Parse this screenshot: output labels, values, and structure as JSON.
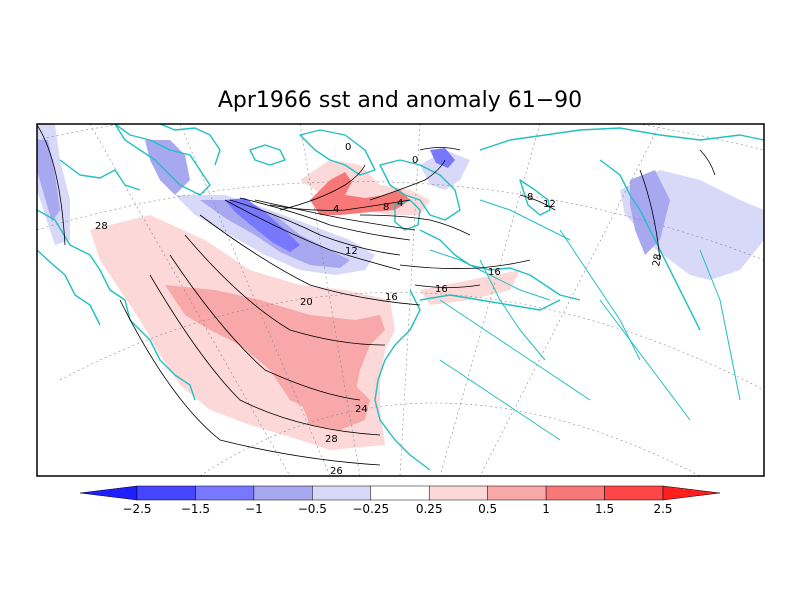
{
  "title": "Apr1966 sst and anomaly 61−90",
  "contour_labels": [
    "28",
    "0",
    "4",
    "8",
    "4",
    "12",
    "16",
    "20",
    "16",
    "16",
    "24",
    "28",
    "26",
    "28",
    "0",
    "8",
    "12"
  ],
  "colorbar": {
    "ticks": [
      "−2.5",
      "−1.5",
      "−1",
      "−0.5",
      "−0.25",
      "0.25",
      "0.5",
      "1",
      "1.5",
      "2.5"
    ],
    "colors": [
      "#1e1eff",
      "#4646ff",
      "#7878ff",
      "#a8a8f0",
      "#d8d8f8",
      "#ffffff",
      "#fcd8d8",
      "#f8a8a8",
      "#f87878",
      "#ff4646",
      "#ff1e1e"
    ]
  },
  "colors": {
    "coast": "#22c0c0",
    "positive_light": "#fcd8d8",
    "positive_mid": "#f8a8a8",
    "positive_strong": "#f87878",
    "negative_light": "#d8d8f8",
    "negative_mid": "#a8a8f0",
    "negative_strong": "#7878ff"
  }
}
